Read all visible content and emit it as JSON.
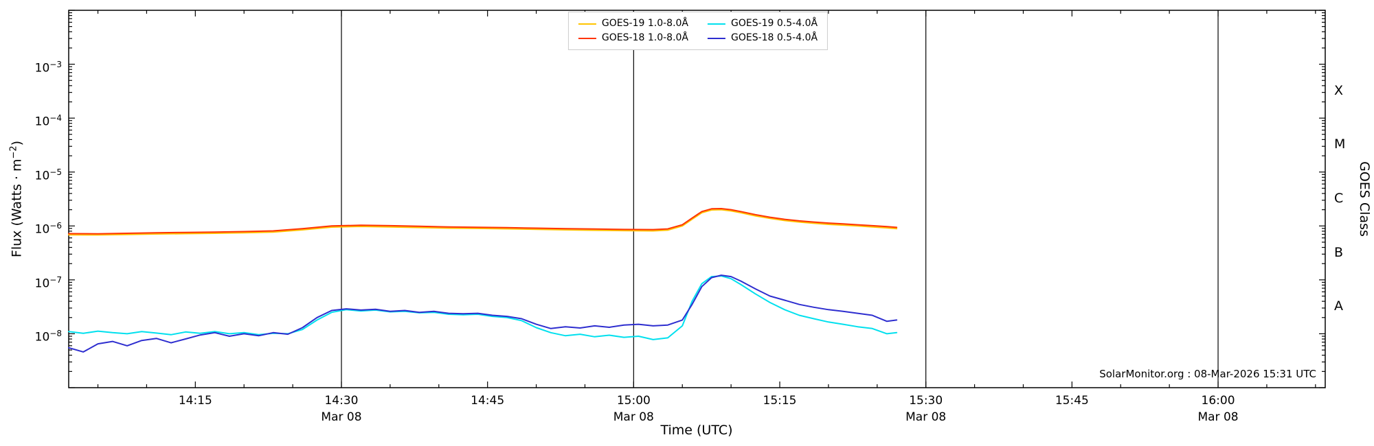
{
  "watermark": "SolarMonitor.org : 08-Mar-2026 15:31 UTC",
  "labels": {
    "xlabel": "Time (UTC)",
    "flux_prefix": "Flux (Watts · m",
    "flux_sup": "−2",
    "flux_suffix": ")",
    "right_axis": "GOES Class"
  },
  "chart_data": {
    "type": "line",
    "title": "",
    "xlabel": "Time (UTC)",
    "ylabel": "Flux (Watts · m^-2)",
    "ylabel_right": "GOES Class",
    "yscale": "log",
    "x_unit": "minutes after 14:00 UTC, 08-Mar-2026",
    "xlim": [
      2,
      131
    ],
    "ylim": [
      1e-09,
      0.01
    ],
    "x_minor_step": 5,
    "legend_position": "upper center",
    "x_ticks": [
      {
        "t": 15,
        "label": "14:15"
      },
      {
        "t": 30,
        "label": "14:30",
        "sub": "Mar 08",
        "line": true
      },
      {
        "t": 45,
        "label": "14:45"
      },
      {
        "t": 60,
        "label": "15:00",
        "sub": "Mar 08",
        "line": true
      },
      {
        "t": 75,
        "label": "15:15"
      },
      {
        "t": 90,
        "label": "15:30",
        "sub": "Mar 08",
        "line": true
      },
      {
        "t": 105,
        "label": "15:45"
      },
      {
        "t": 120,
        "label": "16:00",
        "sub": "Mar 08",
        "line": true
      }
    ],
    "y_ticks": [
      {
        "v": 1e-08,
        "base": "10",
        "exp": "−8"
      },
      {
        "v": 1e-07,
        "base": "10",
        "exp": "−7"
      },
      {
        "v": 1e-06,
        "base": "10",
        "exp": "−6"
      },
      {
        "v": 1e-05,
        "base": "10",
        "exp": "−5"
      },
      {
        "v": 0.0001,
        "base": "10",
        "exp": "−4"
      },
      {
        "v": 0.001,
        "base": "10",
        "exp": "−3"
      }
    ],
    "goes_classes": [
      {
        "label": "A",
        "v": 3.162e-08
      },
      {
        "label": "B",
        "v": 3.162e-07
      },
      {
        "label": "C",
        "v": 3.162e-06
      },
      {
        "label": "M",
        "v": 3.162e-05
      },
      {
        "label": "X",
        "v": 0.0003162
      }
    ],
    "legend_order": [
      0,
      2,
      1,
      3
    ],
    "series": [
      {
        "name": "GOES-19 1.0-8.0Å",
        "color": "#ffc400",
        "width": 2,
        "scale": 1e-07,
        "points": [
          [
            2,
            6.85
          ],
          [
            5,
            6.8
          ],
          [
            8,
            6.95
          ],
          [
            11,
            7.1
          ],
          [
            14,
            7.2
          ],
          [
            17,
            7.3
          ],
          [
            20,
            7.45
          ],
          [
            23,
            7.7
          ],
          [
            26,
            8.45
          ],
          [
            29,
            9.5
          ],
          [
            32,
            9.8
          ],
          [
            35,
            9.6
          ],
          [
            38,
            9.35
          ],
          [
            41,
            9.1
          ],
          [
            44,
            9.0
          ],
          [
            47,
            8.85
          ],
          [
            50,
            8.65
          ],
          [
            53,
            8.45
          ],
          [
            56,
            8.3
          ],
          [
            59,
            8.2
          ],
          [
            62,
            8.1
          ],
          [
            63.5,
            8.35
          ],
          [
            65,
            10.0
          ],
          [
            66,
            13.3
          ],
          [
            67,
            17.6
          ],
          [
            68,
            19.8
          ],
          [
            69,
            20.0
          ],
          [
            70,
            19.0
          ],
          [
            71,
            17.6
          ],
          [
            72.5,
            15.4
          ],
          [
            74,
            13.8
          ],
          [
            75.5,
            12.6
          ],
          [
            77,
            11.8
          ],
          [
            78.5,
            11.2
          ],
          [
            80,
            10.7
          ],
          [
            81.5,
            10.35
          ],
          [
            83,
            10.0
          ],
          [
            84.5,
            9.6
          ],
          [
            86,
            9.2
          ],
          [
            87,
            8.9
          ]
        ]
      },
      {
        "name": "GOES-18 1.0-8.0Å",
        "color": "#ff3300",
        "width": 2,
        "scale": 1e-07,
        "points": [
          [
            2,
            7.2
          ],
          [
            5,
            7.15
          ],
          [
            8,
            7.3
          ],
          [
            11,
            7.45
          ],
          [
            14,
            7.6
          ],
          [
            17,
            7.7
          ],
          [
            20,
            7.85
          ],
          [
            23,
            8.1
          ],
          [
            26,
            8.9
          ],
          [
            29,
            10.0
          ],
          [
            32,
            10.3
          ],
          [
            35,
            10.1
          ],
          [
            38,
            9.85
          ],
          [
            41,
            9.6
          ],
          [
            44,
            9.45
          ],
          [
            47,
            9.3
          ],
          [
            50,
            9.1
          ],
          [
            53,
            8.9
          ],
          [
            56,
            8.75
          ],
          [
            59,
            8.6
          ],
          [
            62,
            8.55
          ],
          [
            63.5,
            8.8
          ],
          [
            65,
            10.5
          ],
          [
            66,
            14
          ],
          [
            67,
            18.5
          ],
          [
            68,
            20.8
          ],
          [
            69,
            21.0
          ],
          [
            70,
            20.0
          ],
          [
            71,
            18.5
          ],
          [
            72.5,
            16.2
          ],
          [
            74,
            14.5
          ],
          [
            75.5,
            13.3
          ],
          [
            77,
            12.4
          ],
          [
            78.5,
            11.8
          ],
          [
            80,
            11.3
          ],
          [
            81.5,
            10.9
          ],
          [
            83,
            10.5
          ],
          [
            84.5,
            10.1
          ],
          [
            86,
            9.7
          ],
          [
            87,
            9.4
          ]
        ]
      },
      {
        "name": "GOES-19 0.5-4.0Å",
        "color": "#00e0ee",
        "width": 2,
        "scale": 1e-09,
        "points": [
          [
            2,
            11
          ],
          [
            3.5,
            10.2
          ],
          [
            5,
            11.2
          ],
          [
            6.5,
            10.5
          ],
          [
            8,
            10.0
          ],
          [
            9.5,
            11.0
          ],
          [
            11,
            10.3
          ],
          [
            12.5,
            9.6
          ],
          [
            14,
            10.8
          ],
          [
            15.5,
            10.2
          ],
          [
            17,
            11.0
          ],
          [
            18.5,
            10.0
          ],
          [
            20,
            10.5
          ],
          [
            21.5,
            9.6
          ],
          [
            23,
            10.2
          ],
          [
            24.5,
            10.0
          ],
          [
            26,
            12
          ],
          [
            27.5,
            18
          ],
          [
            29,
            25
          ],
          [
            30.5,
            28
          ],
          [
            32,
            26.5
          ],
          [
            33.5,
            27.5
          ],
          [
            35,
            25.5
          ],
          [
            36.5,
            26
          ],
          [
            38,
            24.5
          ],
          [
            39.5,
            25
          ],
          [
            41,
            23
          ],
          [
            42.5,
            22.5
          ],
          [
            44,
            23
          ],
          [
            45.5,
            21
          ],
          [
            47,
            20
          ],
          [
            48.5,
            17.5
          ],
          [
            50,
            13
          ],
          [
            51.5,
            10.5
          ],
          [
            53,
            9.2
          ],
          [
            54.5,
            9.8
          ],
          [
            56,
            8.8
          ],
          [
            57.5,
            9.4
          ],
          [
            59,
            8.6
          ],
          [
            60.5,
            9.0
          ],
          [
            62,
            7.8
          ],
          [
            63.5,
            8.4
          ],
          [
            65,
            14
          ],
          [
            66,
            40
          ],
          [
            67,
            85
          ],
          [
            68,
            115
          ],
          [
            69,
            118
          ],
          [
            70,
            105
          ],
          [
            71,
            82
          ],
          [
            72.5,
            55
          ],
          [
            74,
            38
          ],
          [
            75.5,
            28
          ],
          [
            77,
            22
          ],
          [
            78.5,
            19
          ],
          [
            80,
            16.5
          ],
          [
            81.5,
            15
          ],
          [
            83,
            13.5
          ],
          [
            84.5,
            12.5
          ],
          [
            86,
            10
          ],
          [
            87,
            10.5
          ]
        ]
      },
      {
        "name": "GOES-18 0.5-4.0Å",
        "color": "#2d2dcf",
        "width": 2,
        "scale": 1e-09,
        "points": [
          [
            2,
            5.5
          ],
          [
            3.5,
            4.6
          ],
          [
            5,
            6.5
          ],
          [
            6.5,
            7.2
          ],
          [
            8,
            6.0
          ],
          [
            9.5,
            7.5
          ],
          [
            11,
            8.2
          ],
          [
            12.5,
            6.8
          ],
          [
            14,
            8.0
          ],
          [
            15.5,
            9.5
          ],
          [
            17,
            10.5
          ],
          [
            18.5,
            9.0
          ],
          [
            20,
            10.0
          ],
          [
            21.5,
            9.2
          ],
          [
            23,
            10.5
          ],
          [
            24.5,
            9.8
          ],
          [
            26,
            13
          ],
          [
            27.5,
            20
          ],
          [
            29,
            27
          ],
          [
            30.5,
            29
          ],
          [
            32,
            27.5
          ],
          [
            33.5,
            28.5
          ],
          [
            35,
            26
          ],
          [
            36.5,
            27
          ],
          [
            38,
            25
          ],
          [
            39.5,
            26
          ],
          [
            41,
            24
          ],
          [
            42.5,
            23.5
          ],
          [
            44,
            24
          ],
          [
            45.5,
            22
          ],
          [
            47,
            21
          ],
          [
            48.5,
            19
          ],
          [
            50,
            15
          ],
          [
            51.5,
            12.5
          ],
          [
            53,
            13.5
          ],
          [
            54.5,
            12.8
          ],
          [
            56,
            14
          ],
          [
            57.5,
            13.2
          ],
          [
            59,
            14.5
          ],
          [
            60.5,
            15
          ],
          [
            62,
            14
          ],
          [
            63.5,
            14.5
          ],
          [
            65,
            18
          ],
          [
            66,
            35
          ],
          [
            67,
            75
          ],
          [
            68,
            110
          ],
          [
            69,
            122
          ],
          [
            70,
            115
          ],
          [
            71,
            95
          ],
          [
            72.5,
            68
          ],
          [
            74,
            50
          ],
          [
            75.5,
            42
          ],
          [
            77,
            35
          ],
          [
            78.5,
            31
          ],
          [
            80,
            28
          ],
          [
            81.5,
            26
          ],
          [
            83,
            24
          ],
          [
            84.5,
            22
          ],
          [
            86,
            17
          ],
          [
            87,
            18
          ]
        ]
      }
    ]
  }
}
